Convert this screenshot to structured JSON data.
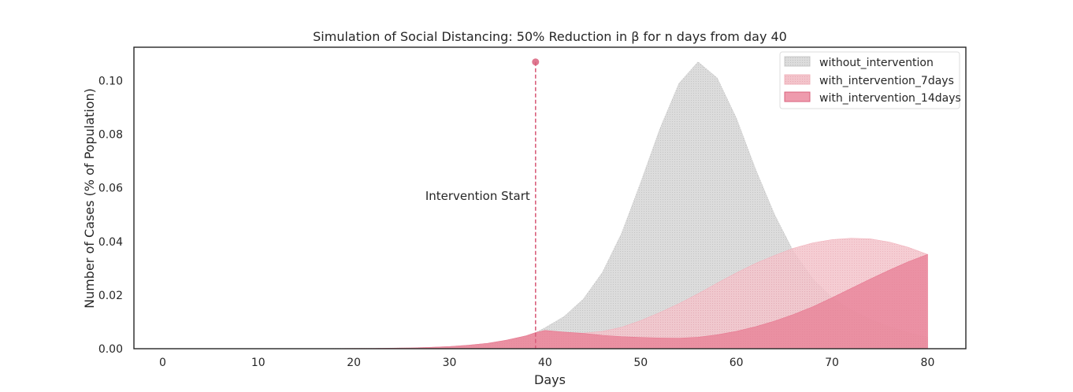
{
  "chart_data": {
    "type": "area",
    "title": "Simulation of Social Distancing: 50% Reduction in β for n days from day 40",
    "xlabel": "Days",
    "ylabel": "Number of Cases (% of Population)",
    "xlim": [
      -3,
      84
    ],
    "ylim": [
      0,
      0.1125
    ],
    "xticks": [
      0,
      10,
      20,
      30,
      40,
      50,
      60,
      70,
      80
    ],
    "yticks": [
      0.0,
      0.02,
      0.04,
      0.06,
      0.08,
      0.1
    ],
    "ytick_labels": [
      "0.00",
      "0.02",
      "0.04",
      "0.06",
      "0.08",
      "0.10"
    ],
    "grid": false,
    "legend_position": "top-right",
    "x": [
      0,
      5,
      10,
      15,
      20,
      22,
      24,
      26,
      28,
      30,
      32,
      34,
      36,
      38,
      39,
      40,
      42,
      44,
      46,
      48,
      50,
      52,
      54,
      56,
      58,
      60,
      62,
      64,
      66,
      68,
      70,
      72,
      74,
      76,
      78,
      80
    ],
    "series": [
      {
        "name": "without_intervention",
        "color": "#c8c8c8",
        "values": [
          0,
          0,
          0,
          0,
          0.0001,
          0.0001,
          0.0002,
          0.0003,
          0.0005,
          0.0008,
          0.0013,
          0.002,
          0.0032,
          0.0048,
          0.006,
          0.0078,
          0.012,
          0.0185,
          0.0285,
          0.043,
          0.062,
          0.082,
          0.099,
          0.107,
          0.101,
          0.086,
          0.067,
          0.05,
          0.036,
          0.026,
          0.019,
          0.0145,
          0.011,
          0.0082,
          0.006,
          0.0043
        ]
      },
      {
        "name": "with_intervention_7days",
        "color": "#f2b3bd",
        "values": [
          0,
          0,
          0,
          0,
          0.0001,
          0.0001,
          0.0002,
          0.0003,
          0.0005,
          0.0008,
          0.0013,
          0.002,
          0.0032,
          0.0048,
          0.006,
          0.0068,
          0.0062,
          0.0058,
          0.0065,
          0.008,
          0.0105,
          0.0135,
          0.0168,
          0.0205,
          0.0245,
          0.0283,
          0.0318,
          0.0348,
          0.0375,
          0.0395,
          0.0407,
          0.0412,
          0.041,
          0.0398,
          0.0378,
          0.0352
        ]
      },
      {
        "name": "with_intervention_14days",
        "color": "#e87a92",
        "values": [
          0,
          0,
          0,
          0,
          0.0001,
          0.0001,
          0.0002,
          0.0003,
          0.0005,
          0.0008,
          0.0013,
          0.002,
          0.0032,
          0.0048,
          0.006,
          0.0068,
          0.0062,
          0.0057,
          0.005,
          0.0045,
          0.0042,
          0.004,
          0.0039,
          0.0043,
          0.0052,
          0.0065,
          0.0082,
          0.0103,
          0.0128,
          0.0157,
          0.019,
          0.0225,
          0.026,
          0.0293,
          0.0325,
          0.0352
        ]
      }
    ],
    "annotation": {
      "text": "Intervention Start",
      "x": 39,
      "y_top": 0.107,
      "color": "#d9607c"
    }
  }
}
